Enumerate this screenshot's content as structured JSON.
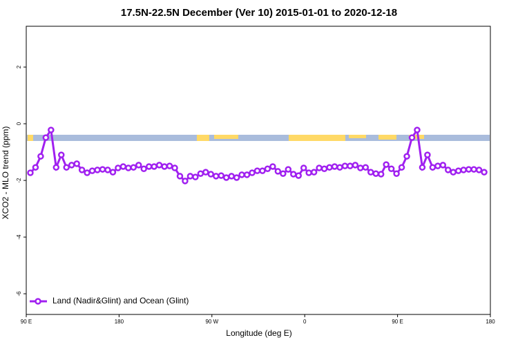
{
  "chart_data": {
    "type": "line",
    "title": "17.5N-22.5N December (Ver 10)   2015-01-01 to 2020-12-18",
    "xlabel": "Longitude (deg E)",
    "ylabel": "XCO2 - MLO trend (ppm)",
    "xlim": [
      90,
      540
    ],
    "ylim": [
      -6.73,
      3.44
    ],
    "xticks": [
      {
        "value": 90,
        "label": "90 E"
      },
      180,
      {
        "value": 270,
        "label": "90 W"
      },
      {
        "value": 360,
        "label": "0"
      },
      {
        "value": 450,
        "label": "90 E"
      },
      {
        "value": 540,
        "label": "180"
      }
    ],
    "yticks": [
      -6,
      -4,
      -2,
      0,
      2
    ],
    "legend": "bottom-left",
    "x": [
      94,
      99,
      104,
      109,
      114,
      119,
      124,
      129,
      134,
      139,
      144,
      149,
      154,
      159,
      164,
      169,
      174,
      179,
      184,
      189,
      194,
      199,
      204,
      209,
      214,
      219,
      224,
      229,
      234,
      239,
      244,
      249,
      254,
      259,
      264,
      269,
      274,
      279,
      284,
      289,
      294,
      299,
      304,
      309,
      314,
      319,
      324,
      329,
      334,
      339,
      344,
      349,
      354,
      359,
      364,
      369,
      374,
      379,
      384,
      389,
      394,
      399,
      404,
      409,
      414,
      419,
      424,
      429,
      434,
      439,
      444,
      449,
      454,
      459,
      464,
      469,
      474,
      479,
      484,
      489,
      494,
      499,
      504,
      509,
      514,
      519,
      524,
      529,
      534
    ],
    "series": [
      {
        "name": "Land (Nadir&Glint) and Ocean (Glint)",
        "color": "#a020f0",
        "values": [
          -1.73,
          -1.54,
          -1.15,
          -0.49,
          -0.22,
          -1.54,
          -1.1,
          -1.54,
          -1.46,
          -1.41,
          -1.63,
          -1.73,
          -1.66,
          -1.63,
          -1.61,
          -1.63,
          -1.71,
          -1.56,
          -1.51,
          -1.56,
          -1.54,
          -1.46,
          -1.59,
          -1.51,
          -1.51,
          -1.46,
          -1.51,
          -1.49,
          -1.56,
          -1.85,
          -2.02,
          -1.85,
          -1.88,
          -1.76,
          -1.71,
          -1.78,
          -1.85,
          -1.83,
          -1.9,
          -1.85,
          -1.9,
          -1.8,
          -1.8,
          -1.73,
          -1.66,
          -1.66,
          -1.59,
          -1.51,
          -1.68,
          -1.76,
          -1.61,
          -1.78,
          -1.83,
          -1.56,
          -1.73,
          -1.71,
          -1.56,
          -1.59,
          -1.54,
          -1.51,
          -1.54,
          -1.49,
          -1.49,
          -1.46,
          -1.56,
          -1.54,
          -1.71,
          -1.76,
          -1.78,
          -1.44,
          -1.59,
          -1.76,
          -1.54,
          -1.15,
          -0.49,
          -0.22,
          -1.54,
          -1.1,
          -1.54,
          -1.49,
          -1.46,
          -1.63,
          -1.71,
          -1.66,
          -1.63,
          -1.61,
          -1.61,
          -1.63,
          -1.71
        ]
      }
    ]
  }
}
